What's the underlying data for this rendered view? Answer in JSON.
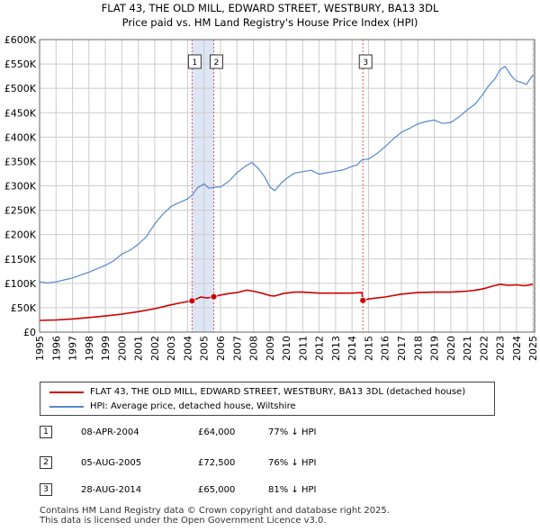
{
  "title_line1": "FLAT 43, THE OLD MILL, EDWARD STREET, WESTBURY, BA13 3DL",
  "title_line2": "Price paid vs. HM Land Registry's House Price Index (HPI)",
  "colors": {
    "price_line": "#cc0000",
    "hpi_line": "#5588cc",
    "shade": "#dde6f4",
    "grid": "#cccccc",
    "vline": "#dd5555"
  },
  "chart_data": {
    "type": "line",
    "xlim": [
      1995,
      2025.1
    ],
    "ylim": [
      0,
      600000
    ],
    "yticks": [
      0,
      50000,
      100000,
      150000,
      200000,
      250000,
      300000,
      350000,
      400000,
      450000,
      500000,
      550000,
      600000
    ],
    "ytick_labels": [
      "£0",
      "£50K",
      "£100K",
      "£150K",
      "£200K",
      "£250K",
      "£300K",
      "£350K",
      "£400K",
      "£450K",
      "£500K",
      "£550K",
      "£600K"
    ],
    "xticks": [
      1995,
      1996,
      1997,
      1998,
      1999,
      2000,
      2001,
      2002,
      2003,
      2004,
      2005,
      2006,
      2007,
      2008,
      2009,
      2010,
      2011,
      2012,
      2013,
      2014,
      2015,
      2016,
      2017,
      2018,
      2019,
      2020,
      2021,
      2022,
      2023,
      2024,
      2025
    ],
    "xtick_labels": [
      "1995",
      "1996",
      "1997",
      "1998",
      "1999",
      "2000",
      "2001",
      "2002",
      "2003",
      "2004",
      "2005",
      "2006",
      "2007",
      "2008",
      "2009",
      "2010",
      "2011",
      "2012",
      "2013",
      "2014",
      "2015",
      "2016",
      "2017",
      "2018",
      "2019",
      "2020",
      "2021",
      "2022",
      "2023",
      "2024",
      "2025"
    ],
    "grid": true,
    "shaded_ranges": [
      [
        2004.27,
        2005.59
      ]
    ],
    "series": [
      {
        "name": "FLAT 43, THE OLD MILL, EDWARD STREET, WESTBURY, BA13 3DL (detached house)",
        "color": "#cc0000",
        "x": [
          1995.0,
          1996.0,
          1997.0,
          1998.0,
          1999.0,
          2000.0,
          2001.0,
          2002.0,
          2003.0,
          2003.7,
          2004.27,
          2004.8,
          2005.2,
          2005.59,
          2006.0,
          2006.5,
          2007.0,
          2007.6,
          2008.0,
          2008.5,
          2009.0,
          2009.3,
          2009.8,
          2010.5,
          2011.0,
          2012.0,
          2013.0,
          2014.0,
          2014.6,
          2014.66,
          2015.0,
          2016.0,
          2017.0,
          2018.0,
          2019.0,
          2020.0,
          2021.0,
          2021.5,
          2022.0,
          2022.5,
          2023.0,
          2023.5,
          2024.0,
          2024.5,
          2025.0
        ],
        "y": [
          24000,
          25000,
          27000,
          30000,
          33000,
          37000,
          42000,
          48000,
          56000,
          61000,
          64000,
          72000,
          70000,
          72500,
          76000,
          79000,
          81000,
          86000,
          84000,
          80000,
          75000,
          74000,
          79000,
          82000,
          82000,
          80000,
          80000,
          80000,
          81000,
          65000,
          68000,
          72000,
          78000,
          81000,
          82000,
          82000,
          84000,
          86000,
          89000,
          94000,
          98000,
          96000,
          97000,
          95000,
          98000
        ]
      },
      {
        "name": "HPI: Average price, detached house, Wiltshire",
        "color": "#5588cc",
        "x": [
          1995.0,
          1995.5,
          1996.0,
          1996.5,
          1997.0,
          1997.5,
          1998.0,
          1998.5,
          1999.0,
          1999.5,
          2000.0,
          2000.5,
          2001.0,
          2001.5,
          2002.0,
          2002.5,
          2003.0,
          2003.5,
          2004.0,
          2004.3,
          2004.6,
          2005.0,
          2005.3,
          2005.6,
          2006.0,
          2006.5,
          2007.0,
          2007.5,
          2007.9,
          2008.3,
          2008.7,
          2009.0,
          2009.3,
          2009.7,
          2010.0,
          2010.5,
          2011.0,
          2011.5,
          2012.0,
          2012.5,
          2013.0,
          2013.5,
          2014.0,
          2014.3,
          2014.6,
          2015.0,
          2015.5,
          2016.0,
          2016.5,
          2017.0,
          2017.5,
          2018.0,
          2018.5,
          2019.0,
          2019.5,
          2020.0,
          2020.5,
          2021.0,
          2021.5,
          2022.0,
          2022.3,
          2022.7,
          2023.0,
          2023.3,
          2023.7,
          2024.0,
          2024.3,
          2024.6,
          2025.0
        ],
        "y": [
          103000,
          101000,
          103000,
          107000,
          111000,
          117000,
          123000,
          130000,
          137000,
          146000,
          160000,
          168000,
          180000,
          196000,
          222000,
          242000,
          258000,
          266000,
          273000,
          282000,
          296000,
          304000,
          295000,
          297000,
          298000,
          309000,
          327000,
          340000,
          348000,
          336000,
          318000,
          298000,
          290000,
          306000,
          315000,
          326000,
          329000,
          332000,
          324000,
          327000,
          330000,
          333000,
          340000,
          343000,
          353000,
          355000,
          366000,
          380000,
          396000,
          410000,
          418000,
          427000,
          432000,
          435000,
          428000,
          430000,
          441000,
          456000,
          468000,
          490000,
          505000,
          520000,
          538000,
          545000,
          525000,
          515000,
          512000,
          508000,
          528000
        ]
      }
    ],
    "sales": [
      {
        "id": "1",
        "x": 2004.27,
        "y": 64000
      },
      {
        "id": "2",
        "x": 2005.59,
        "y": 72500
      },
      {
        "id": "3",
        "x": 2014.66,
        "y": 65000
      }
    ]
  },
  "legend": [
    {
      "label": "FLAT 43, THE OLD MILL, EDWARD STREET, WESTBURY, BA13 3DL (detached house)",
      "color": "#cc0000"
    },
    {
      "label": "HPI: Average price, detached house, Wiltshire",
      "color": "#5588cc"
    }
  ],
  "sales_table": [
    {
      "num": "1",
      "date": "08-APR-2004",
      "price": "£64,000",
      "hpi": "77% ↓ HPI"
    },
    {
      "num": "2",
      "date": "05-AUG-2005",
      "price": "£72,500",
      "hpi": "76% ↓ HPI"
    },
    {
      "num": "3",
      "date": "28-AUG-2014",
      "price": "£65,000",
      "hpi": "81% ↓ HPI"
    }
  ],
  "footer_line1": "Contains HM Land Registry data © Crown copyright and database right 2025.",
  "footer_line2": "This data is licensed under the Open Government Licence v3.0."
}
